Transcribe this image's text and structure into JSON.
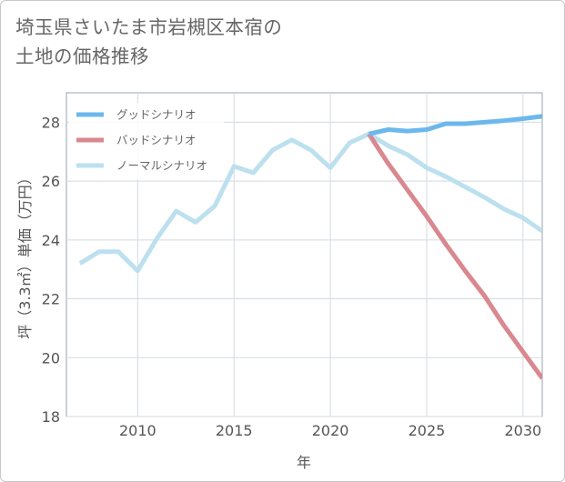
{
  "title_lines": [
    "埼玉県さいたま市岩槻区本宿の",
    "土地の価格推移"
  ],
  "chart_data": {
    "type": "line",
    "title": "埼玉県さいたま市岩槻区本宿の土地の価格推移",
    "xlabel": "年",
    "ylabel": "坪（3.3㎡）単価（万円）",
    "xlim": [
      2006.3,
      2031
    ],
    "ylim": [
      18,
      29
    ],
    "xticks": [
      2010,
      2015,
      2020,
      2025,
      2030
    ],
    "yticks": [
      18,
      20,
      22,
      24,
      26,
      28
    ],
    "grid": true,
    "legend_position": "top-left",
    "series": [
      {
        "name": "グッドシナリオ",
        "color": "#6cb8ec",
        "x": [
          2022,
          2023,
          2024,
          2025,
          2026,
          2027,
          2028,
          2029,
          2030,
          2031
        ],
        "y": [
          27.6,
          27.75,
          27.7,
          27.75,
          27.95,
          27.95,
          28.0,
          28.05,
          28.12,
          28.2
        ]
      },
      {
        "name": "バッドシナリオ",
        "color": "#d9888f",
        "x": [
          2022,
          2023,
          2024,
          2025,
          2026,
          2027,
          2028,
          2029,
          2030,
          2031
        ],
        "y": [
          27.6,
          26.6,
          25.7,
          24.8,
          23.85,
          22.95,
          22.1,
          21.1,
          20.2,
          19.3
        ]
      },
      {
        "name": "ノーマルシナリオ",
        "color": "#bde0ef",
        "x": [
          2007,
          2008,
          2009,
          2010,
          2011,
          2012,
          2013,
          2014,
          2015,
          2016,
          2017,
          2018,
          2019,
          2020,
          2021,
          2022,
          2023,
          2024,
          2025,
          2026,
          2027,
          2028,
          2029,
          2030,
          2031
        ],
        "y": [
          23.2,
          23.6,
          23.6,
          22.95,
          24.05,
          24.98,
          24.6,
          25.15,
          26.5,
          26.28,
          27.05,
          27.4,
          27.05,
          26.45,
          27.3,
          27.6,
          27.2,
          26.9,
          26.45,
          26.15,
          25.8,
          25.45,
          25.05,
          24.75,
          24.3
        ]
      }
    ]
  }
}
